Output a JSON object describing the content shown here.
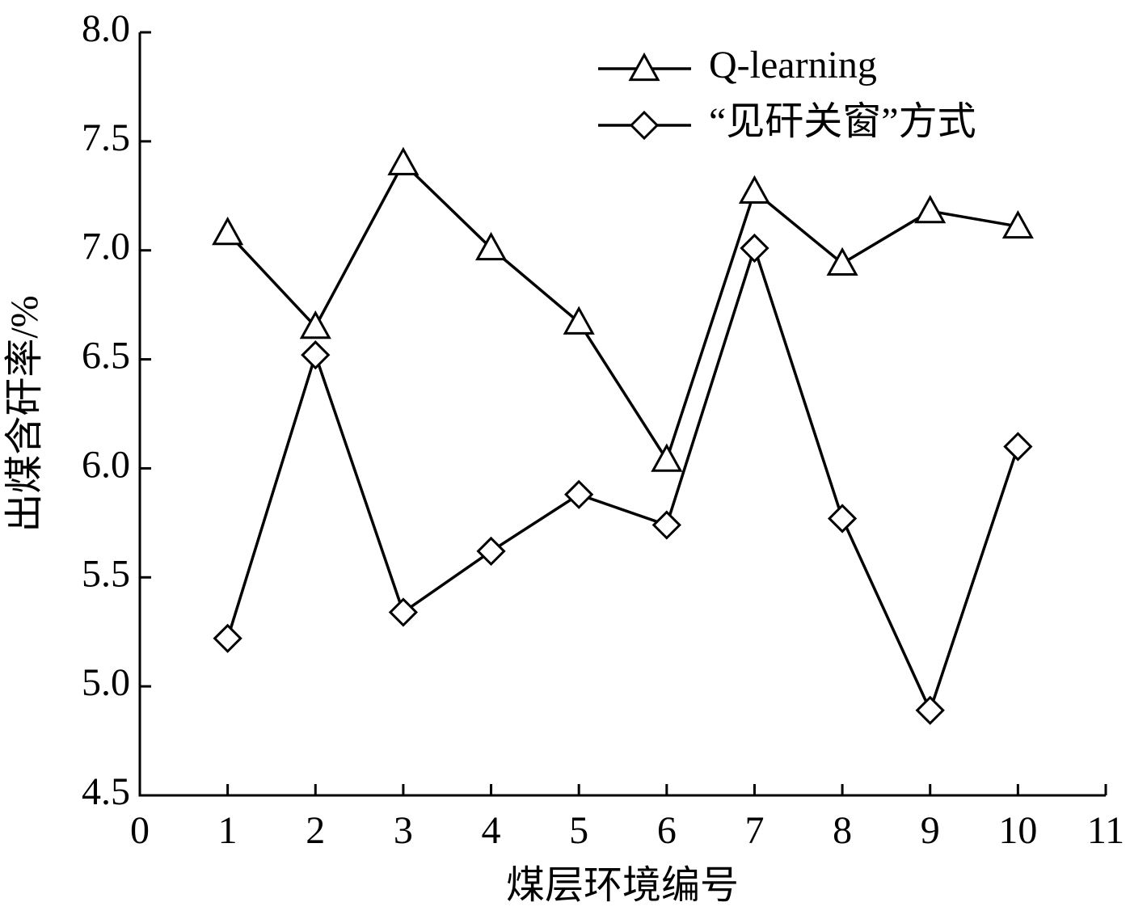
{
  "chart_data": {
    "type": "line",
    "x_label": "煤层环境编号",
    "y_label": "出煤含矸率/%",
    "x": [
      1,
      2,
      3,
      4,
      5,
      6,
      7,
      8,
      9,
      10
    ],
    "series": [
      {
        "name": "Q-learning",
        "color": "#000000",
        "marker": "triangle",
        "values": [
          7.08,
          6.65,
          7.4,
          7.01,
          6.67,
          6.04,
          7.27,
          6.94,
          7.18,
          7.11
        ]
      },
      {
        "name": "“见矸关窗”方式",
        "color": "#000000",
        "marker": "diamond",
        "values": [
          5.22,
          6.52,
          5.34,
          5.62,
          5.88,
          5.74,
          7.01,
          5.77,
          4.89,
          6.1
        ]
      }
    ],
    "xlim": [
      0,
      11
    ],
    "xticks": [
      0,
      1,
      2,
      3,
      4,
      5,
      6,
      7,
      8,
      9,
      10,
      11
    ],
    "ylim": [
      4.5,
      8.0
    ],
    "yticks": [
      4.5,
      {
        "value": 5,
        "label": "5.0"
      },
      5.5,
      {
        "value": 6,
        "label": "6.0"
      },
      6.5,
      {
        "value": 7,
        "label": "7.0"
      },
      7.5,
      {
        "value": 8,
        "label": "8.0"
      }
    ],
    "grid": false,
    "legend": "upper-right"
  }
}
